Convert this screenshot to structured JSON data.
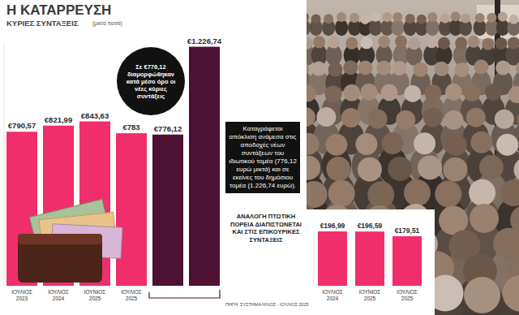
{
  "title": "Η ΚΑΤΑΡΡΕΥΣΗ",
  "source": "ΠΗΓΗ: ΣΥΣΤΗΜΑ ΗΛΙΟΣ - ΙΟΥΛΙΟΣ 2025",
  "chart_data": [
    {
      "type": "bar",
      "title": "ΚΥΡΙΕΣ ΣΥΝΤΑΞΕΙΣ",
      "subtitle": "(μικτά ποσά)",
      "categories": [
        "ΙΟΥΛΙΟΣ 2023",
        "ΙΟΥΛΙΟΣ 2024",
        "ΙΟΥΝΙΟΣ 2025",
        "ΙΟΥΛΙΟΣ 2025",
        null,
        null
      ],
      "values": [
        790.57,
        821.99,
        843.63,
        783,
        776.12,
        1226.74
      ],
      "value_labels": [
        "€790,57",
        "€821,99",
        "€843,63",
        "€783",
        "€776,12",
        "€1.226,74"
      ],
      "colors": [
        "#ef2e6b",
        "#ef2e6b",
        "#ef2e6b",
        "#ef2e6b",
        "#4d1133",
        "#4d1133"
      ],
      "ylim": [
        0,
        1250
      ],
      "tick_labels": "x",
      "annotations": [
        "Σε €776,12 διαμορφώθηκαν κατά μέσο όρο οι νέες κύριες συντάξεις",
        "Καταγράφεται απόκλιση ανάμεσα στις αποδοχές νέων συντάξεων του ιδιωτικού τομέα (776,12 ευρώ μικτά) και σε εκείνες του δημόσιου τομέα (1.226,74 ευρώ)."
      ]
    },
    {
      "type": "bar",
      "title": "ΑΝΑΛΟΓΗ ΠΤΩΤΙΚΗ ΠΟΡΕΙΑ ΔΙΑΠΙΣΤΩΝΕΤΑΙ ΚΑΙ ΣΤΙΣ ΕΠΙΚΟΥΡΙΚΕΣ ΣΥΝΤΑΞΕΙΣ",
      "categories": [
        "ΙΟΥΛΙΟΣ 2024",
        "ΙΟΥΝΙΟΣ 2025",
        "ΙΟΥΛΙΟΣ 2025"
      ],
      "values": [
        196.99,
        196.59,
        179.51
      ],
      "value_labels": [
        "€196,99",
        "€196,59",
        "€179,51"
      ],
      "color": "#ef2e6b",
      "ylim": [
        0,
        200
      ],
      "tick_labels": "x"
    }
  ]
}
